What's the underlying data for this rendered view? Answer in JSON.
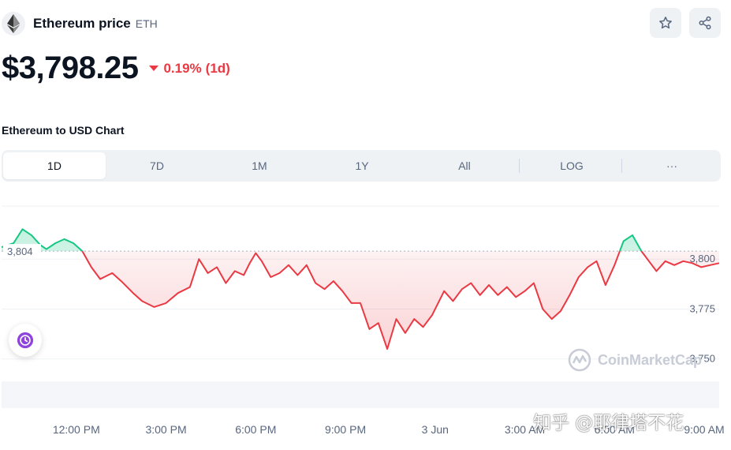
{
  "coin": {
    "name": "Ethereum price",
    "symbol": "ETH",
    "logo_icon": "ethereum-icon"
  },
  "actions": {
    "star_icon": "star-icon",
    "share_icon": "share-icon"
  },
  "price": {
    "value": "$3,798.25",
    "change": "0.19%",
    "period": "(1d)",
    "direction": "down",
    "color": "#ea3943"
  },
  "chart_title": "Ethereum to USD Chart",
  "tabs": [
    {
      "label": "1D",
      "active": true
    },
    {
      "label": "7D",
      "active": false
    },
    {
      "label": "1M",
      "active": false
    },
    {
      "label": "1Y",
      "active": false
    },
    {
      "label": "All",
      "active": false
    },
    {
      "label": "LOG",
      "active": false
    },
    {
      "label": "···",
      "active": false
    }
  ],
  "history_icon": "history-icon",
  "watermark": "CoinMarketCap",
  "overlay_text": "知乎 @耶律塔不花",
  "chart_data": {
    "type": "line",
    "title": "",
    "reference_label": "3,804",
    "reference_value": 3804,
    "y_ticks": [
      "3,800",
      "3,775",
      "3,750"
    ],
    "y_tick_values": [
      3800,
      3775,
      3750
    ],
    "ylim": [
      3740,
      3825
    ],
    "x_ticks": [
      "12:00 PM",
      "3:00 PM",
      "6:00 PM",
      "9:00 PM",
      "3 Jun",
      "3:00 AM",
      "6:00 AM",
      "9:00 AM"
    ],
    "x_tick_hours": [
      12,
      15,
      18,
      21,
      24,
      27,
      30,
      33
    ],
    "xlim": [
      9.5,
      33.5
    ],
    "colors": {
      "up": "#16c784",
      "down": "#ea3943"
    },
    "series": [
      {
        "x": [
          9.5,
          9.9,
          10.2,
          10.5,
          10.8,
          11.0,
          11.3,
          11.6,
          11.9,
          12.2,
          12.5,
          12.8,
          13.2,
          13.5,
          13.9,
          14.2,
          14.6,
          15.0,
          15.4,
          15.8,
          16.1,
          16.4,
          16.7,
          17.0,
          17.3,
          17.6,
          17.8,
          18.0,
          18.2,
          18.5,
          18.8,
          19.1,
          19.4,
          19.7,
          20.0,
          20.3,
          20.6,
          20.9,
          21.2,
          21.5,
          21.8,
          22.1,
          22.4,
          22.7,
          23.0,
          23.3,
          23.6,
          23.9,
          24.1,
          24.3,
          24.6,
          24.9,
          25.2,
          25.5,
          25.8,
          26.1,
          26.4,
          26.7,
          27.0,
          27.3,
          27.6,
          27.9,
          28.2,
          28.5,
          28.8,
          29.1,
          29.4,
          29.7,
          30.0,
          30.3,
          30.6,
          30.9,
          31.2,
          31.4,
          31.7,
          32.0,
          32.3,
          32.6,
          32.9,
          33.2,
          33.5
        ],
        "y": [
          3806,
          3808,
          3815,
          3812,
          3807,
          3805,
          3808,
          3810,
          3808,
          3804,
          3796,
          3790,
          3793,
          3789,
          3783,
          3779,
          3776,
          3778,
          3783,
          3786,
          3800,
          3793,
          3796,
          3788,
          3794,
          3792,
          3798,
          3803,
          3799,
          3791,
          3793,
          3797,
          3792,
          3797,
          3788,
          3785,
          3789,
          3784,
          3778,
          3778,
          3765,
          3768,
          3755,
          3770,
          3763,
          3770,
          3766,
          3772,
          3778,
          3784,
          3779,
          3785,
          3788,
          3782,
          3787,
          3782,
          3786,
          3781,
          3784,
          3788,
          3775,
          3770,
          3774,
          3782,
          3791,
          3796,
          3799,
          3787,
          3797,
          3809,
          3812,
          3804,
          3798,
          3794,
          3799,
          3797,
          3799,
          3798,
          3796,
          3797,
          3798
        ]
      }
    ],
    "grid": true
  }
}
